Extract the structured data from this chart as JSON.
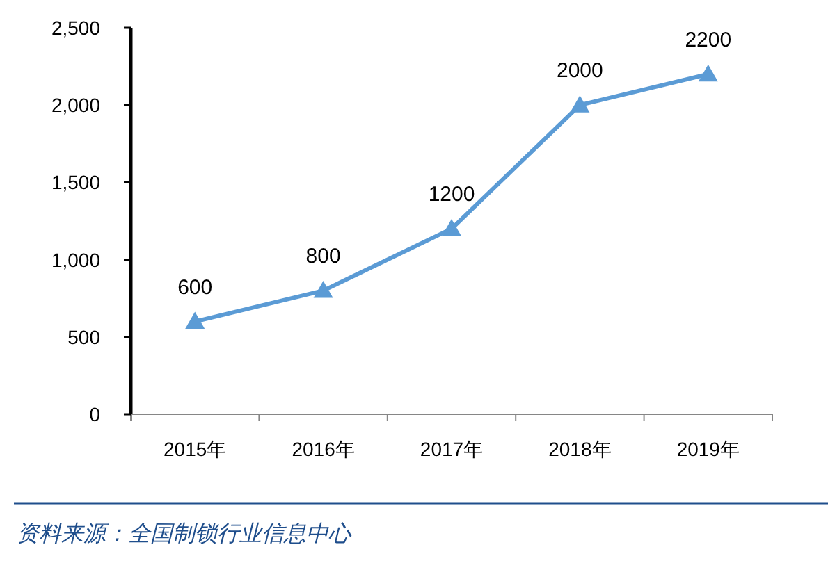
{
  "chart_data": {
    "type": "line",
    "categories": [
      "2015年",
      "2016年",
      "2017年",
      "2018年",
      "2019年"
    ],
    "series": [
      {
        "color": "#5b9bd5",
        "values": [
          600,
          800,
          1200,
          2000,
          2200
        ]
      }
    ],
    "ylim": [
      0,
      2500
    ],
    "yticks": [
      0,
      500,
      {
        "value": 1000,
        "label": "1,000"
      },
      {
        "value": 1500,
        "label": "1,500"
      },
      {
        "value": 2000,
        "label": "2,000"
      },
      {
        "value": 2500,
        "label": "2,500"
      }
    ],
    "data_labels": true,
    "marker": "triangle",
    "line_style": "solid",
    "grid": false,
    "annotations": [
      "资料来源：全国制锁行业信息中心"
    ]
  }
}
